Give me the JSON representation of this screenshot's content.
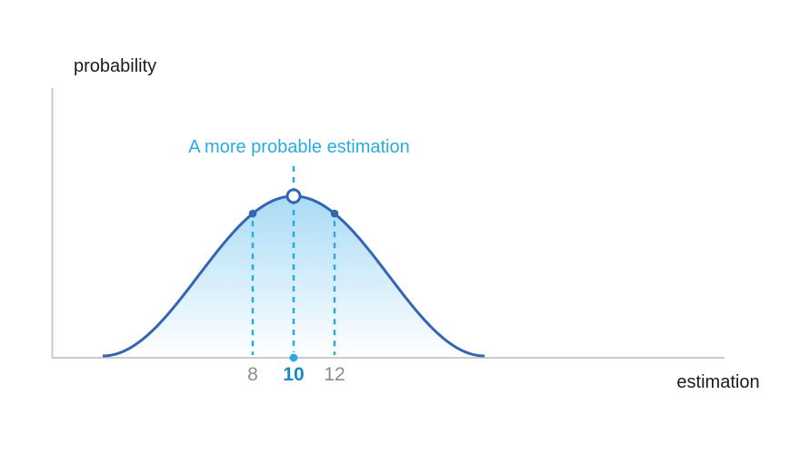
{
  "chart_data": {
    "type": "area",
    "annotation": "A more probable estimation",
    "xlabel": "estimation",
    "ylabel": "probability",
    "x_ticks": [
      {
        "value": 8,
        "label": "8",
        "emphasis": false
      },
      {
        "value": 10,
        "label": "10",
        "emphasis": true
      },
      {
        "value": 12,
        "label": "12",
        "emphasis": false
      }
    ],
    "curve": {
      "shape": "bell",
      "mean": 10,
      "visible_x_range": [
        0.7,
        19.3
      ],
      "relative_height_at_ticks": {
        "8": 0.89,
        "10": 1.0,
        "12": 0.89
      }
    },
    "markers": [
      {
        "x": 8,
        "style": "filled-dot",
        "position": "on-curve"
      },
      {
        "x": 10,
        "style": "open-circle",
        "position": "curve-peak"
      },
      {
        "x": 12,
        "style": "filled-dot",
        "position": "on-curve"
      },
      {
        "x": 10,
        "style": "filled-dot",
        "position": "on-axis"
      }
    ],
    "guides": [
      {
        "x": 8,
        "style": "dashed",
        "from": "curve",
        "to": "axis"
      },
      {
        "x": 10,
        "style": "dashed",
        "from": "annotation",
        "to": "axis"
      },
      {
        "x": 12,
        "style": "dashed",
        "from": "curve",
        "to": "axis"
      }
    ],
    "grid": false,
    "legend": false,
    "colors": {
      "curve_stroke": "#3565b2",
      "fill_top": "#a8dbf5",
      "fill_bottom": "#ffffff",
      "accent": "#29abe2",
      "tick_gray": "#8c8c8c",
      "tick_highlight": "#1787cb",
      "axis_gray": "#c9cbcd",
      "text": "#1b1b1b"
    }
  }
}
